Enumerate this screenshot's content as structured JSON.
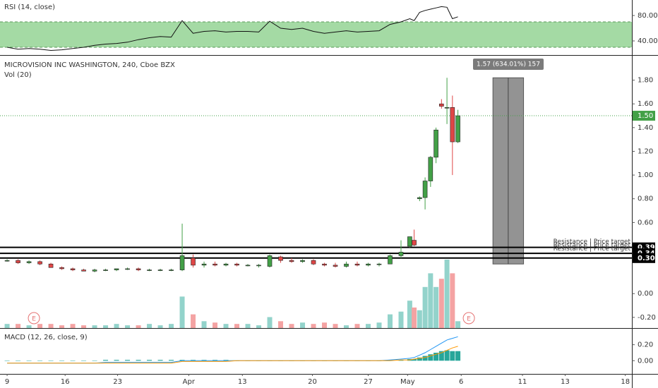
{
  "chart_data": {
    "type": "candlestick",
    "title": "MICROVISION INC WASHINGTON, 240, Cboe BZX",
    "subtitle": "Vol (20)",
    "x": [
      0,
      1,
      2,
      3,
      4,
      5,
      6,
      7,
      8,
      9,
      10,
      11,
      12,
      13,
      14,
      15,
      16,
      17,
      18,
      19,
      20,
      21,
      22,
      23,
      24,
      25,
      26,
      27,
      28,
      29,
      30,
      31,
      32,
      33,
      34,
      35,
      36,
      36.8,
      37.2,
      37.7,
      38.2,
      38.7,
      39.2,
      39.7,
      40.2,
      40.7,
      41.2
    ],
    "open": [
      0.28,
      0.28,
      0.26,
      0.27,
      0.25,
      0.22,
      0.21,
      0.2,
      0.19,
      0.2,
      0.2,
      0.21,
      0.21,
      0.2,
      0.2,
      0.2,
      0.2,
      0.3,
      0.24,
      0.25,
      0.24,
      0.25,
      0.24,
      0.24,
      0.23,
      0.31,
      0.28,
      0.27,
      0.28,
      0.25,
      0.24,
      0.23,
      0.25,
      0.24,
      0.25,
      0.25,
      0.32,
      0.4,
      0.45,
      0.8,
      0.81,
      0.95,
      1.15,
      1.6,
      1.57,
      1.57,
      1.28
    ],
    "high": [
      0.29,
      0.29,
      0.28,
      0.28,
      0.26,
      0.23,
      0.22,
      0.21,
      0.21,
      0.21,
      0.21,
      0.22,
      0.22,
      0.21,
      0.21,
      0.21,
      0.59,
      0.33,
      0.27,
      0.27,
      0.26,
      0.26,
      0.25,
      0.25,
      0.33,
      0.32,
      0.3,
      0.29,
      0.29,
      0.26,
      0.26,
      0.27,
      0.27,
      0.26,
      0.26,
      0.33,
      0.45,
      0.48,
      0.54,
      0.82,
      0.98,
      1.16,
      1.4,
      1.64,
      1.82,
      1.67,
      1.55
    ],
    "low": [
      0.27,
      0.25,
      0.25,
      0.24,
      0.22,
      0.2,
      0.19,
      0.19,
      0.18,
      0.19,
      0.19,
      0.2,
      0.19,
      0.19,
      0.19,
      0.19,
      0.19,
      0.22,
      0.22,
      0.23,
      0.23,
      0.23,
      0.23,
      0.22,
      0.22,
      0.26,
      0.26,
      0.26,
      0.24,
      0.23,
      0.22,
      0.22,
      0.23,
      0.23,
      0.23,
      0.25,
      0.3,
      0.39,
      0.4,
      0.78,
      0.71,
      0.9,
      1.1,
      1.56,
      1.43,
      1.0,
      1.27
    ],
    "close": [
      0.28,
      0.26,
      0.27,
      0.25,
      0.22,
      0.21,
      0.2,
      0.19,
      0.2,
      0.2,
      0.21,
      0.21,
      0.2,
      0.2,
      0.2,
      0.2,
      0.32,
      0.24,
      0.25,
      0.24,
      0.25,
      0.24,
      0.24,
      0.24,
      0.32,
      0.28,
      0.27,
      0.28,
      0.25,
      0.24,
      0.23,
      0.25,
      0.24,
      0.25,
      0.25,
      0.32,
      0.35,
      0.48,
      0.41,
      0.81,
      0.95,
      1.15,
      1.38,
      1.58,
      1.57,
      1.28,
      1.5
    ],
    "volume": [
      3,
      3,
      2,
      3,
      3,
      2,
      3,
      2,
      2,
      2,
      3,
      2,
      2,
      3,
      2,
      3,
      23,
      10,
      5,
      4,
      3,
      3,
      3,
      2,
      8,
      5,
      3,
      4,
      3,
      4,
      3,
      2,
      3,
      3,
      4,
      10,
      12,
      20,
      15,
      13,
      30,
      40,
      30,
      36,
      50,
      40,
      5
    ],
    "up_color": "#43a047",
    "down_color": "#e04646",
    "volume_up_color": "#93d3cb",
    "volume_down_color": "#f4a3a3",
    "xlim": [
      -0.65,
      57.1
    ],
    "xticks": [
      {
        "value": 0,
        "label": "9"
      },
      {
        "value": 5.3,
        "label": "16"
      },
      {
        "value": 10.1,
        "label": "23"
      },
      {
        "value": 16.6,
        "label": "Apr"
      },
      {
        "value": 21.5,
        "label": "13"
      },
      {
        "value": 27.9,
        "label": "20"
      },
      {
        "value": 33,
        "label": "27"
      },
      {
        "value": 36.6,
        "label": "May"
      },
      {
        "value": 41.5,
        "label": "6"
      },
      {
        "value": 47.1,
        "label": "11"
      },
      {
        "value": 51,
        "label": "13"
      },
      {
        "value": 56.5,
        "label": "18"
      }
    ],
    "ylim": [
      -0.29,
      2.0
    ],
    "yticks": [
      {
        "value": 1.8,
        "label": "1.80"
      },
      {
        "value": 1.6,
        "label": "1.60"
      },
      {
        "value": 1.4,
        "label": "1.40"
      },
      {
        "value": 1.2,
        "label": "1.20"
      },
      {
        "value": 1,
        "label": "1.00"
      },
      {
        "value": 0.8,
        "label": "0.80"
      },
      {
        "value": 0.6,
        "label": "0.60"
      },
      {
        "value": 0,
        "label": "0.00"
      },
      {
        "value": -0.2,
        "label": "-0.20"
      }
    ],
    "last_price": {
      "value": 1.5,
      "label": "1.50",
      "color": "#43a047"
    },
    "levels": [
      {
        "value": 0.39,
        "label": "0.39",
        "text": "Resistance | Price target"
      },
      {
        "value": 0.34,
        "label": "0.34",
        "text": "Resistance | Price target"
      },
      {
        "value": 0.3,
        "label": "0.30",
        "text": "Resistance | Price target"
      }
    ],
    "measure": {
      "from": 0.25,
      "to": 1.82,
      "x": [
        44.4,
        47.2
      ],
      "label": "1.57 (634.01%) 157"
    },
    "events": [
      {
        "x": 2.45,
        "label": "E"
      },
      {
        "x": 42.2,
        "label": "E"
      }
    ],
    "rsi": {
      "title": "RSI (14, close)",
      "values": [
        30,
        27,
        28,
        27,
        25,
        26,
        28,
        30,
        33,
        35,
        36,
        38,
        42,
        45,
        47,
        46,
        72,
        52,
        55,
        56,
        54,
        55,
        55,
        54,
        71,
        60,
        58,
        60,
        55,
        52,
        54,
        56,
        54,
        55,
        56,
        66,
        70,
        75,
        72,
        85,
        88,
        90,
        92,
        94,
        93,
        75,
        78
      ],
      "ylim": [
        17.8,
        104.4
      ],
      "yticks": [
        {
          "value": 80,
          "label": "80.00"
        },
        {
          "value": 40,
          "label": "40.00"
        }
      ],
      "band": [
        30,
        70
      ],
      "color": "#111111",
      "band_color": "#94d494"
    },
    "macd": {
      "title": "MACD (12, 26, close, 9)",
      "macd": [
        -0.03,
        -0.03,
        -0.03,
        -0.03,
        -0.03,
        -0.03,
        -0.03,
        -0.03,
        -0.03,
        -0.02,
        -0.02,
        -0.02,
        -0.02,
        -0.02,
        -0.02,
        -0.02,
        0,
        0,
        0,
        0,
        0,
        0,
        0,
        0,
        0,
        0,
        0,
        0,
        0,
        0,
        0,
        0,
        0,
        0,
        0,
        0.01,
        0.02,
        0.03,
        0.04,
        0.07,
        0.1,
        0.14,
        0.18,
        0.22,
        0.26,
        0.28,
        0.3
      ],
      "signal": [
        -0.03,
        -0.03,
        -0.03,
        -0.03,
        -0.03,
        -0.03,
        -0.03,
        -0.03,
        -0.03,
        -0.03,
        -0.03,
        -0.03,
        -0.03,
        -0.03,
        -0.03,
        -0.03,
        -0.01,
        -0.01,
        -0.01,
        -0.01,
        -0.01,
        0,
        0,
        0,
        0,
        0,
        0,
        0,
        0,
        0,
        0,
        0,
        0,
        0,
        0,
        0,
        0.01,
        0.01,
        0.02,
        0.03,
        0.04,
        0.06,
        0.08,
        0.1,
        0.13,
        0.16,
        0.18
      ],
      "histogram": [
        0,
        0,
        0,
        0,
        0,
        0,
        0,
        0,
        0,
        0.01,
        0.01,
        0.01,
        0.01,
        0.01,
        0.01,
        0.01,
        0.01,
        0.01,
        0.01,
        0.01,
        0.01,
        0,
        0,
        0,
        0,
        0,
        0,
        0,
        0,
        0,
        0,
        0,
        0,
        0,
        0,
        0.01,
        0.01,
        0.02,
        0.02,
        0.04,
        0.06,
        0.08,
        0.1,
        0.12,
        0.13,
        0.12,
        0.12
      ],
      "ylim": [
        -0.165,
        0.4
      ],
      "yticks": [
        {
          "value": 0.2,
          "label": "0.20"
        },
        {
          "value": 0,
          "label": "0.00"
        }
      ],
      "macd_color": "#2196f3",
      "signal_color": "#ff9800",
      "histogram_color": "#26a69a"
    }
  }
}
